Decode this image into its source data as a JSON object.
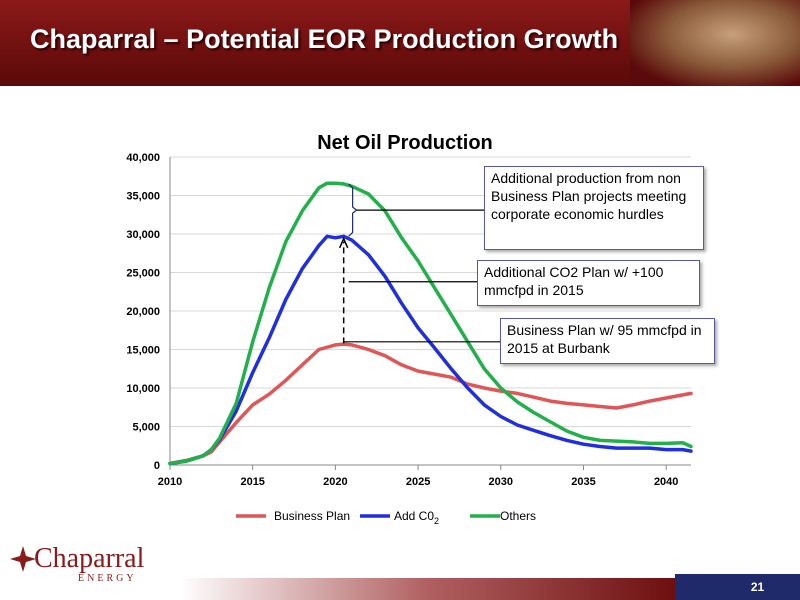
{
  "slide": {
    "title": "Chaparral – Potential EOR Production Growth",
    "page_number": "21",
    "logo_name": "Chaparral",
    "logo_sub": "ENERGY"
  },
  "callouts": {
    "others": "Additional production from non Business Plan projects meeting corporate economic hurdles",
    "co2": "Additional CO2 Plan w/ +100 mmcfpd in 2015",
    "business_plan": "Business Plan w/ 95 mmcfpd in 2015 at Burbank"
  },
  "colors": {
    "header": "#7a1414",
    "business_plan": "#e05555",
    "add_co2": "#1f2ee0",
    "others": "#22b04b",
    "page_box": "#1f2a6b"
  },
  "chart_data": {
    "type": "line",
    "title": "Net Oil Production",
    "xlabel": "",
    "ylabel": "",
    "xlim": [
      2010,
      2041.5
    ],
    "ylim": [
      0,
      40000
    ],
    "xticks": [
      "2010",
      "2015",
      "2020",
      "2025",
      "2030",
      "2035",
      "2040"
    ],
    "yticks": [
      "0",
      "5,000",
      "10,000",
      "15,000",
      "20,000",
      "25,000",
      "30,000",
      "35,000",
      "40,000"
    ],
    "grid": "horizontal",
    "legend": "bottom",
    "series": [
      {
        "name": "Business Plan",
        "x": [
          2010,
          2011,
          2012,
          2012.5,
          2013,
          2014,
          2015,
          2016,
          2017,
          2018,
          2019,
          2020,
          2020.5,
          2021,
          2022,
          2023,
          2024,
          2025,
          2026,
          2027,
          2028,
          2029,
          2030,
          2031,
          2032,
          2033,
          2034,
          2035,
          2036,
          2037,
          2038,
          2039,
          2040,
          2041,
          2041.5
        ],
        "values": [
          200,
          600,
          1200,
          1700,
          3000,
          5500,
          7800,
          9200,
          11000,
          13000,
          15000,
          15600,
          15700,
          15600,
          15000,
          14200,
          13000,
          12200,
          11800,
          11400,
          10500,
          10000,
          9600,
          9300,
          8800,
          8300,
          8000,
          7800,
          7600,
          7400,
          7800,
          8300,
          8700,
          9100,
          9300
        ]
      },
      {
        "name": "Add C0",
        "name_sub": "2",
        "x": [
          2010,
          2011,
          2012,
          2012.5,
          2013,
          2014,
          2015,
          2016,
          2017,
          2018,
          2019,
          2019.5,
          2020,
          2020.5,
          2021,
          2022,
          2023,
          2024,
          2025,
          2026,
          2027,
          2028,
          2029,
          2030,
          2031,
          2032,
          2033,
          2034,
          2035,
          2036,
          2037,
          2038,
          2039,
          2040,
          2041,
          2041.5
        ],
        "values": [
          200,
          500,
          1200,
          2000,
          3300,
          7000,
          12000,
          16500,
          21500,
          25500,
          28500,
          29700,
          29500,
          29700,
          29200,
          27300,
          24500,
          21000,
          17800,
          15200,
          12500,
          10000,
          7800,
          6300,
          5200,
          4500,
          3800,
          3200,
          2700,
          2400,
          2200,
          2200,
          2200,
          2000,
          2000,
          1800
        ]
      },
      {
        "name": "Others",
        "x": [
          2010,
          2011,
          2012,
          2012.5,
          2013,
          2014,
          2015,
          2016,
          2017,
          2018,
          2019,
          2019.5,
          2020,
          2020.5,
          2021,
          2022,
          2023,
          2024,
          2025,
          2026,
          2027,
          2028,
          2029,
          2030,
          2031,
          2032,
          2033,
          2034,
          2035,
          2036,
          2037,
          2038,
          2039,
          2040,
          2041,
          2041.5
        ],
        "values": [
          200,
          500,
          1200,
          2000,
          3500,
          8000,
          16000,
          23000,
          29000,
          33000,
          36000,
          36600,
          36600,
          36500,
          36200,
          35200,
          33000,
          29500,
          26500,
          23000,
          19500,
          16000,
          12500,
          10000,
          8200,
          6800,
          5600,
          4400,
          3600,
          3200,
          3100,
          3000,
          2800,
          2800,
          2900,
          2400
        ]
      }
    ]
  }
}
